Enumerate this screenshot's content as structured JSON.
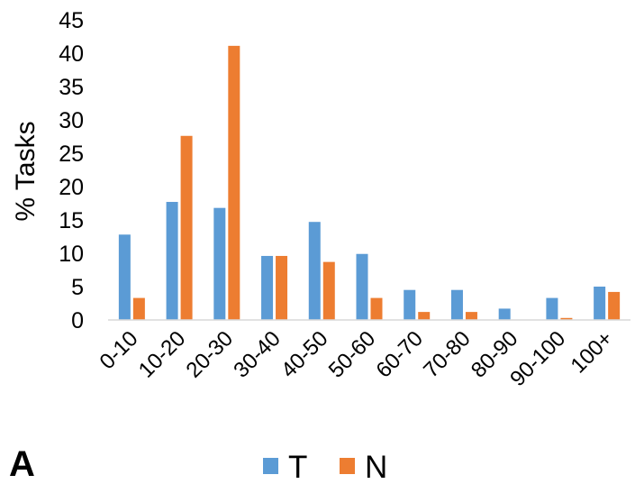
{
  "panel_label": "A",
  "chart_data": {
    "type": "bar",
    "title": "",
    "xlabel": "",
    "ylabel": "% Tasks",
    "ylim": [
      0,
      45
    ],
    "yticks": [
      0,
      5,
      10,
      15,
      20,
      25,
      30,
      35,
      40,
      45
    ],
    "grid": false,
    "legend_position": "bottom",
    "categories": [
      "0-10",
      "10-20",
      "20-30",
      "30-40",
      "40-50",
      "50-60",
      "60-70",
      "70-80",
      "80-90",
      "90-100",
      "100+"
    ],
    "series": [
      {
        "name": "T",
        "color": "#5B9BD5",
        "values": [
          12.8,
          17.7,
          16.8,
          9.6,
          14.7,
          9.9,
          4.5,
          4.5,
          1.7,
          3.3,
          5.0
        ]
      },
      {
        "name": "N",
        "color": "#ED7D31",
        "values": [
          3.3,
          27.6,
          41.1,
          9.6,
          8.7,
          3.3,
          1.2,
          1.2,
          0,
          0.3,
          4.2
        ]
      }
    ]
  }
}
